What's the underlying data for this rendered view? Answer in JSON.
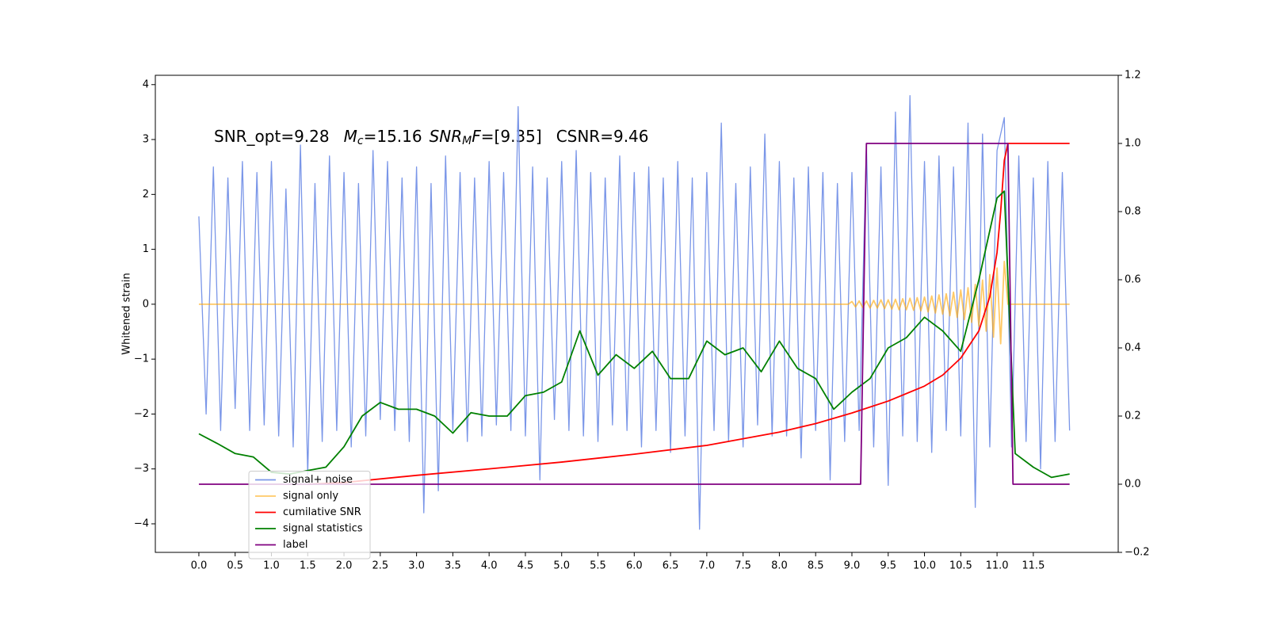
{
  "chart_data": {
    "type": "line",
    "ylabel": "Whitened strain",
    "annotation": [
      "SNR_opt=9.28",
      "M",
      "c",
      "=15.16",
      "SNR",
      "M",
      "F",
      "=[9.35]",
      "CSNR=9.46"
    ],
    "xlim": [
      -0.6,
      12.67
    ],
    "ylim": [
      -4.52,
      4.17
    ],
    "y2lim": [
      -0.2,
      1.2
    ],
    "xticks": [
      {
        "value": 0,
        "label": "0.0"
      },
      0.5,
      {
        "value": 1,
        "label": "1.0"
      },
      1.5,
      {
        "value": 2,
        "label": "2.0"
      },
      2.5,
      {
        "value": 3,
        "label": "3.0"
      },
      3.5,
      {
        "value": 4,
        "label": "4.0"
      },
      4.5,
      {
        "value": 5,
        "label": "5.0"
      },
      5.5,
      {
        "value": 6,
        "label": "6.0"
      },
      6.5,
      {
        "value": 7,
        "label": "7.0"
      },
      7.5,
      {
        "value": 8,
        "label": "8.0"
      },
      8.5,
      {
        "value": 9,
        "label": "9.0"
      },
      9.5,
      {
        "value": 10,
        "label": "10.0"
      },
      10.5,
      {
        "value": 11,
        "label": "11.0"
      },
      11.5
    ],
    "yticks": [
      {
        "value": -4,
        "label": "−4"
      },
      {
        "value": -3,
        "label": "−3"
      },
      {
        "value": -2,
        "label": "−2"
      },
      {
        "value": -1,
        "label": "−1"
      },
      0,
      1,
      2,
      3,
      4
    ],
    "y2ticks": [
      {
        "value": -0.2,
        "label": "−0.2"
      },
      {
        "value": 0,
        "label": "0.0"
      },
      0.2,
      0.4,
      0.6,
      0.8,
      {
        "value": 1,
        "label": "1.0"
      },
      1.2
    ],
    "legend": "lower left",
    "series": [
      {
        "name": "signal+ noise",
        "color": "#7a96e8",
        "x": [
          0,
          0.1,
          0.2,
          0.3,
          0.4,
          0.5,
          0.6,
          0.7,
          0.8,
          0.9,
          1,
          1.1,
          1.2,
          1.3,
          1.4,
          1.5,
          1.6,
          1.7,
          1.8,
          1.9,
          2,
          2.1,
          2.2,
          2.3,
          2.4,
          2.5,
          2.6,
          2.7,
          2.8,
          2.9,
          3,
          3.1,
          3.2,
          3.3,
          3.4,
          3.5,
          3.6,
          3.7,
          3.8,
          3.9,
          4,
          4.1,
          4.2,
          4.3,
          4.4,
          4.5,
          4.6,
          4.7,
          4.8,
          4.9,
          5,
          5.1,
          5.2,
          5.3,
          5.4,
          5.5,
          5.6,
          5.7,
          5.8,
          5.9,
          6,
          6.1,
          6.2,
          6.3,
          6.4,
          6.5,
          6.6,
          6.7,
          6.8,
          6.9,
          7,
          7.1,
          7.2,
          7.3,
          7.4,
          7.5,
          7.6,
          7.7,
          7.8,
          7.9,
          8,
          8.1,
          8.2,
          8.3,
          8.4,
          8.5,
          8.6,
          8.7,
          8.8,
          8.9,
          9,
          9.1,
          9.2,
          9.3,
          9.4,
          9.5,
          9.6,
          9.7,
          9.8,
          9.9,
          10,
          10.1,
          10.2,
          10.3,
          10.4,
          10.5,
          10.6,
          10.7,
          10.8,
          10.9,
          11,
          11.1,
          11.2,
          11.3,
          11.4,
          11.5,
          11.6,
          11.7,
          11.8,
          11.9,
          12
        ],
        "values": [
          1.6,
          -2.0,
          2.5,
          -2.3,
          2.3,
          -1.9,
          2.6,
          -2.3,
          2.4,
          -2.2,
          2.6,
          -2.4,
          2.1,
          -2.6,
          2.9,
          -3.1,
          2.2,
          -2.5,
          2.7,
          -2.3,
          2.4,
          -2.6,
          2.2,
          -2.4,
          2.8,
          -2.1,
          2.6,
          -2.3,
          2.3,
          -2.5,
          2.5,
          -3.8,
          2.2,
          -3.4,
          2.7,
          -2.3,
          2.4,
          -2.5,
          2.3,
          -2.4,
          2.6,
          -2.2,
          2.4,
          -2.3,
          3.6,
          -2.4,
          2.5,
          -3.2,
          2.3,
          -2.1,
          2.6,
          -2.3,
          2.8,
          -2.4,
          2.4,
          -2.5,
          2.3,
          -2.2,
          2.7,
          -2.3,
          2.4,
          -2.6,
          2.5,
          -2.3,
          2.3,
          -2.7,
          2.6,
          -2.4,
          2.3,
          -4.1,
          2.4,
          -2.3,
          3.3,
          -2.5,
          2.2,
          -2.6,
          2.5,
          -2.2,
          3.1,
          -2.4,
          2.6,
          -2.4,
          2.3,
          -2.8,
          2.5,
          -2.3,
          2.4,
          -3.2,
          2.2,
          -2.5,
          2.4,
          -2.3,
          2.9,
          -2.6,
          2.5,
          -3.3,
          3.5,
          -2.4,
          3.8,
          -2.5,
          2.6,
          -2.7,
          2.7,
          -2.3,
          2.5,
          -2.4,
          3.3,
          -3.7,
          3.1,
          -2.6,
          2.8,
          3.4,
          -2.6,
          2.7,
          -2.5,
          2.3,
          -3.0,
          2.6,
          -2.5,
          2.4,
          -2.3
        ]
      },
      {
        "name": "signal only",
        "color": "#ffa500",
        "x": [
          0,
          8.95,
          9,
          9.05,
          9.1,
          9.15,
          9.2,
          9.25,
          9.3,
          9.35,
          9.4,
          9.45,
          9.5,
          9.55,
          9.6,
          9.65,
          9.7,
          9.75,
          9.8,
          9.85,
          9.9,
          9.95,
          10,
          10.05,
          10.1,
          10.15,
          10.2,
          10.25,
          10.3,
          10.35,
          10.4,
          10.45,
          10.5,
          10.55,
          10.6,
          10.65,
          10.7,
          10.75,
          10.8,
          10.85,
          10.9,
          10.95,
          11,
          11.05,
          11.1,
          11.15,
          12
        ],
        "values": [
          0,
          0,
          0.05,
          -0.05,
          0.06,
          -0.06,
          0.06,
          -0.07,
          0.07,
          -0.07,
          0.08,
          -0.08,
          0.08,
          -0.09,
          0.09,
          -0.1,
          0.1,
          -0.1,
          0.11,
          -0.11,
          0.12,
          -0.12,
          0.13,
          -0.14,
          0.15,
          -0.16,
          0.17,
          -0.18,
          0.19,
          -0.21,
          0.22,
          -0.24,
          0.26,
          -0.28,
          0.3,
          -0.33,
          0.36,
          -0.4,
          0.44,
          -0.49,
          0.54,
          -0.6,
          0.66,
          -0.72,
          0.78,
          0,
          0
        ]
      },
      {
        "name": "cumilative SNR",
        "color": "#ff0000",
        "axis": "y2",
        "x": [
          1.5,
          2,
          3,
          4,
          5,
          6,
          7,
          8,
          8.5,
          9,
          9.5,
          10,
          10.25,
          10.5,
          10.75,
          10.9,
          11,
          11.05,
          11.1,
          11.15,
          12
        ],
        "values": [
          0,
          0.005,
          0.026,
          0.045,
          0.065,
          0.088,
          0.114,
          0.153,
          0.178,
          0.209,
          0.244,
          0.288,
          0.32,
          0.37,
          0.45,
          0.55,
          0.68,
          0.8,
          0.95,
          1,
          1
        ]
      },
      {
        "name": "signal statistics",
        "color": "#008000",
        "axis": "y2",
        "x": [
          0,
          0.25,
          0.5,
          0.75,
          1,
          1.25,
          1.5,
          1.75,
          2,
          2.25,
          2.5,
          2.75,
          3,
          3.25,
          3.5,
          3.75,
          4,
          4.25,
          4.5,
          4.75,
          5,
          5.25,
          5.5,
          5.75,
          6,
          6.25,
          6.5,
          6.75,
          7,
          7.25,
          7.5,
          7.75,
          8,
          8.25,
          8.5,
          8.75,
          9,
          9.25,
          9.5,
          9.75,
          10,
          10.25,
          10.5,
          10.75,
          11,
          11.1,
          11.25,
          11.5,
          11.75,
          12
        ],
        "values": [
          0.148,
          0.12,
          0.09,
          0.08,
          0.035,
          0.03,
          0.04,
          0.05,
          0.11,
          0.2,
          0.24,
          0.22,
          0.22,
          0.2,
          0.15,
          0.21,
          0.2,
          0.2,
          0.26,
          0.27,
          0.3,
          0.45,
          0.32,
          0.38,
          0.34,
          0.39,
          0.31,
          0.31,
          0.42,
          0.38,
          0.4,
          0.33,
          0.42,
          0.34,
          0.31,
          0.22,
          0.27,
          0.31,
          0.4,
          0.43,
          0.49,
          0.45,
          0.39,
          0.6,
          0.84,
          0.86,
          0.09,
          0.05,
          0.02,
          0.03
        ]
      },
      {
        "name": "label",
        "color": "#800080",
        "axis": "y2",
        "x": [
          0,
          9.12,
          9.2,
          11.15,
          11.22,
          12
        ],
        "values": [
          0,
          0,
          1,
          1,
          0,
          0
        ]
      }
    ]
  }
}
